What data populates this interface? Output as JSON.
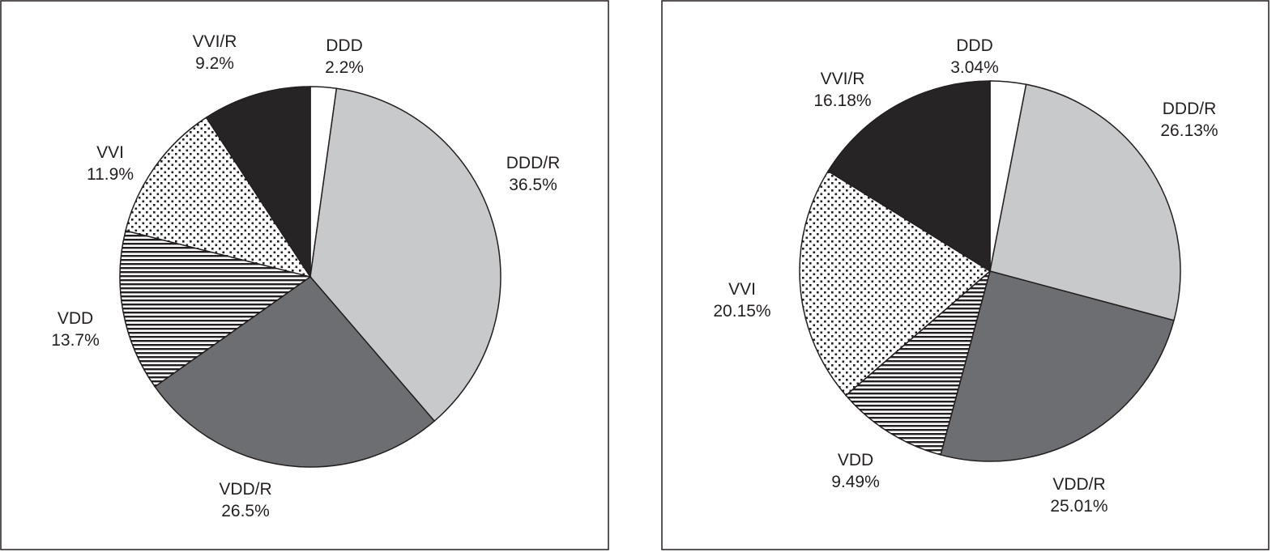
{
  "chart_data": [
    {
      "type": "pie",
      "slices": [
        {
          "label": "DDD",
          "value_label": "2.2%",
          "value": 2.2,
          "fill": "#ffffff"
        },
        {
          "label": "DDD/R",
          "value_label": "36.5%",
          "value": 36.5,
          "fill": "#c8c9cb"
        },
        {
          "label": "VDD/R",
          "value_label": "26.5%",
          "value": 26.5,
          "fill": "#6d6e71"
        },
        {
          "label": "VDD",
          "value_label": "13.7%",
          "value": 13.7,
          "fill": "pattern-horizontal-stripes"
        },
        {
          "label": "VVI",
          "value_label": "11.9%",
          "value": 11.9,
          "fill": "pattern-dots"
        },
        {
          "label": "VVI/R",
          "value_label": "9.2%",
          "value": 9.2,
          "fill": "#262425"
        }
      ]
    },
    {
      "type": "pie",
      "slices": [
        {
          "label": "DDD",
          "value_label": "3.04%",
          "value": 3.04,
          "fill": "#ffffff"
        },
        {
          "label": "DDD/R",
          "value_label": "26.13%",
          "value": 26.13,
          "fill": "#c8c9cb"
        },
        {
          "label": "VDD/R",
          "value_label": "25.01%",
          "value": 25.01,
          "fill": "#6d6e71"
        },
        {
          "label": "VDD",
          "value_label": "9.49%",
          "value": 9.49,
          "fill": "pattern-horizontal-stripes"
        },
        {
          "label": "VVI",
          "value_label": "20.15%",
          "value": 20.15,
          "fill": "pattern-dots"
        },
        {
          "label": "VVI/R",
          "value_label": "16.18%",
          "value": 16.18,
          "fill": "#262425"
        }
      ]
    }
  ]
}
